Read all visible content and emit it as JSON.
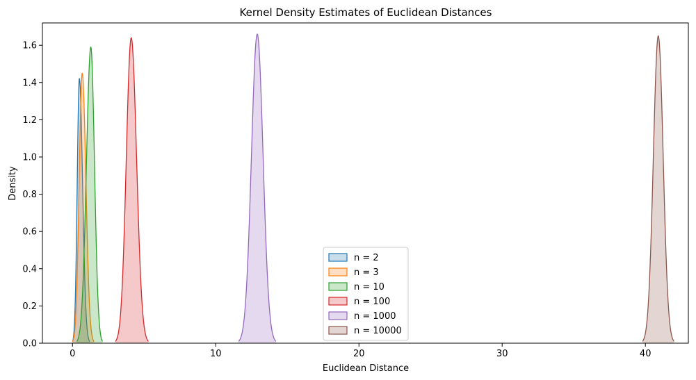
{
  "chart_data": {
    "type": "area",
    "title": "Kernel Density Estimates of Euclidean Distances",
    "xlabel": "Euclidean Distance",
    "ylabel": "Density",
    "xlim": [
      -2.1,
      43.0
    ],
    "ylim": [
      0,
      1.72
    ],
    "x_ticks": [
      0,
      10,
      20,
      30,
      40
    ],
    "y_ticks": [
      0.0,
      0.2,
      0.4,
      0.6,
      0.8,
      1.0,
      1.2,
      1.4,
      1.6
    ],
    "grid": false,
    "legend_position": "lower-center",
    "series": [
      {
        "name": "n = 2",
        "color": "#1f77b4",
        "peak_x": 0.48,
        "peak_density": 1.42,
        "x_min": 0.0,
        "x_max": 1.2
      },
      {
        "name": "n = 3",
        "color": "#ff7f0e",
        "peak_x": 0.68,
        "peak_density": 1.45,
        "x_min": 0.0,
        "x_max": 1.5
      },
      {
        "name": "n = 10",
        "color": "#2ca02c",
        "peak_x": 1.28,
        "peak_density": 1.59,
        "x_min": 0.3,
        "x_max": 2.1
      },
      {
        "name": "n = 100",
        "color": "#d62728",
        "peak_x": 4.1,
        "peak_density": 1.64,
        "x_min": 3.0,
        "x_max": 5.3
      },
      {
        "name": "n = 1000",
        "color": "#9467bd",
        "peak_x": 12.9,
        "peak_density": 1.66,
        "x_min": 11.6,
        "x_max": 14.2
      },
      {
        "name": "n = 10000",
        "color": "#8c564b",
        "peak_x": 40.9,
        "peak_density": 1.65,
        "x_min": 39.8,
        "x_max": 42.0
      }
    ]
  }
}
